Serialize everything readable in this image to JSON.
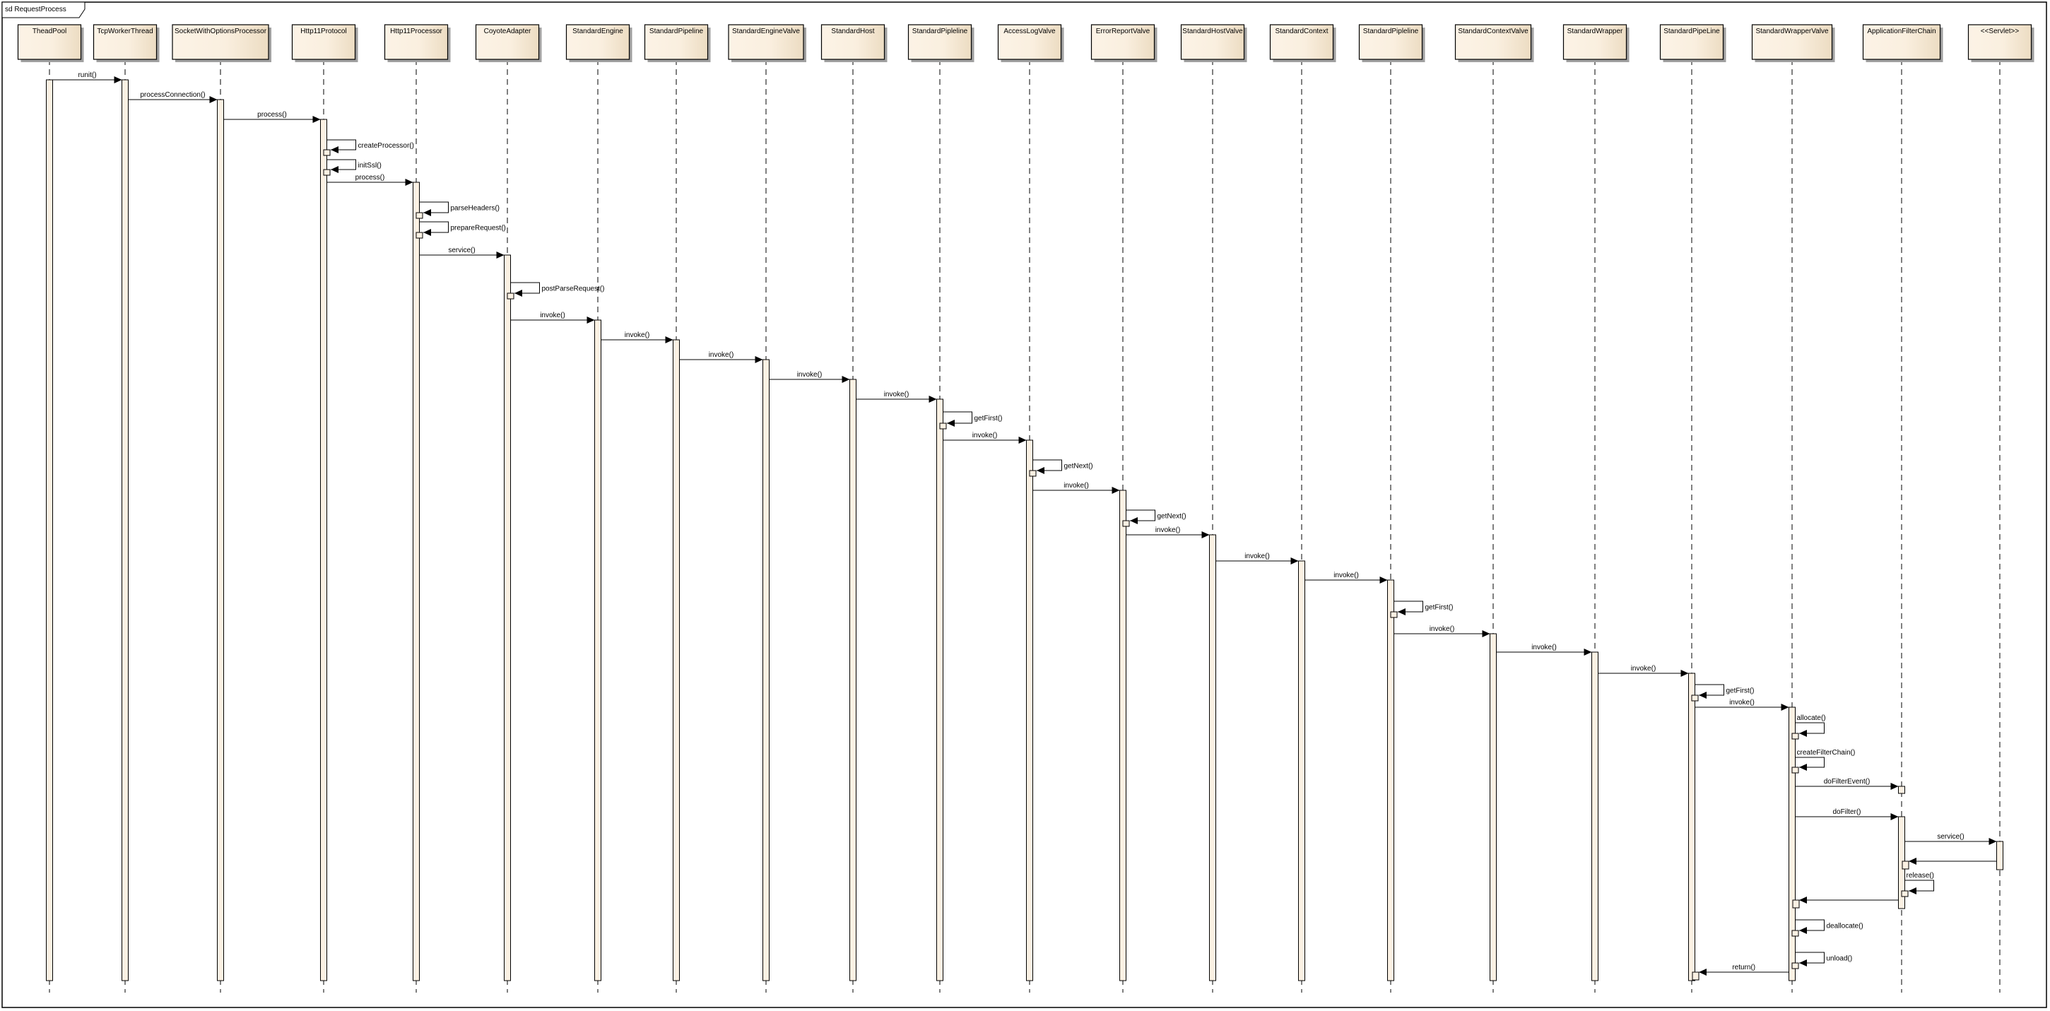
{
  "frame": {
    "title": "sd RequestProcess"
  },
  "colors": {
    "box_light": "#fcf3e6",
    "box_dark": "#ecdcc2",
    "activation": "#fbf1e3",
    "line": "#000000",
    "shadow": "#a0a0a0"
  },
  "participants": [
    "TheadPool",
    "TcpWorkerThread",
    "SocketWithOptionsProcessor",
    "Http11Protocol",
    "Http11Processor",
    "CoyoteAdapter",
    "StandardEngine",
    "StandardPipeline",
    "StandardEngineValve",
    "StandardHost",
    "StandardPipleline",
    "AccessLogValve",
    "ErrorReportValve",
    "StandardHostValve",
    "StandardContext",
    "StandardPipleline",
    "StandardContextValve",
    "StandardWrapper",
    "StandardPipeLine",
    "StandardWrapperValve",
    "ApplicationFilterChain",
    "<<Servlet>>"
  ],
  "messages": [
    {
      "label": "runit()",
      "from": 0,
      "to": 1,
      "kind": "call"
    },
    {
      "label": "processConnection()",
      "from": 1,
      "to": 2,
      "kind": "call"
    },
    {
      "label": "process()",
      "from": 2,
      "to": 3,
      "kind": "call"
    },
    {
      "label": "createProcessor()",
      "from": 3,
      "to": 3,
      "kind": "self"
    },
    {
      "label": "initSsl()",
      "from": 3,
      "to": 3,
      "kind": "self"
    },
    {
      "label": "process()",
      "from": 3,
      "to": 4,
      "kind": "call"
    },
    {
      "label": "parseHeaders()",
      "from": 4,
      "to": 4,
      "kind": "self"
    },
    {
      "label": "prepareRequest()",
      "from": 4,
      "to": 4,
      "kind": "self"
    },
    {
      "label": "service()",
      "from": 4,
      "to": 5,
      "kind": "call"
    },
    {
      "label": "postParseRequest()",
      "from": 5,
      "to": 5,
      "kind": "self"
    },
    {
      "label": "invoke()",
      "from": 5,
      "to": 6,
      "kind": "call"
    },
    {
      "label": "invoke()",
      "from": 6,
      "to": 7,
      "kind": "call"
    },
    {
      "label": "invoke()",
      "from": 7,
      "to": 8,
      "kind": "call"
    },
    {
      "label": "invoke()",
      "from": 8,
      "to": 9,
      "kind": "call"
    },
    {
      "label": "invoke()",
      "from": 9,
      "to": 10,
      "kind": "call"
    },
    {
      "label": "getFirst()",
      "from": 10,
      "to": 10,
      "kind": "self"
    },
    {
      "label": "invoke()",
      "from": 10,
      "to": 11,
      "kind": "call"
    },
    {
      "label": "getNext()",
      "from": 11,
      "to": 11,
      "kind": "self"
    },
    {
      "label": "invoke()",
      "from": 11,
      "to": 12,
      "kind": "call"
    },
    {
      "label": "getNext()",
      "from": 12,
      "to": 12,
      "kind": "self"
    },
    {
      "label": "invoke()",
      "from": 12,
      "to": 13,
      "kind": "call"
    },
    {
      "label": "invoke()",
      "from": 13,
      "to": 14,
      "kind": "call"
    },
    {
      "label": "invoke()",
      "from": 14,
      "to": 15,
      "kind": "call"
    },
    {
      "label": "getFirst()",
      "from": 15,
      "to": 15,
      "kind": "self"
    },
    {
      "label": "invoke()",
      "from": 15,
      "to": 16,
      "kind": "call"
    },
    {
      "label": "invoke()",
      "from": 16,
      "to": 17,
      "kind": "call"
    },
    {
      "label": "invoke()",
      "from": 17,
      "to": 18,
      "kind": "call"
    },
    {
      "label": "getFirst()",
      "from": 18,
      "to": 18,
      "kind": "self"
    },
    {
      "label": "invoke()",
      "from": 18,
      "to": 19,
      "kind": "call"
    },
    {
      "label": "allocate()",
      "from": 19,
      "to": 19,
      "kind": "self"
    },
    {
      "label": "createFilterChain()",
      "from": 19,
      "to": 19,
      "kind": "self"
    },
    {
      "label": "doFilterEvent()",
      "from": 19,
      "to": 20,
      "kind": "call"
    },
    {
      "label": "doFilter()",
      "from": 19,
      "to": 20,
      "kind": "call"
    },
    {
      "label": "service()",
      "from": 20,
      "to": 21,
      "kind": "call"
    },
    {
      "label": "",
      "from": 21,
      "to": 20,
      "kind": "return"
    },
    {
      "label": "release()",
      "from": 20,
      "to": 20,
      "kind": "self"
    },
    {
      "label": "",
      "from": 20,
      "to": 19,
      "kind": "return"
    },
    {
      "label": "deallocate()",
      "from": 19,
      "to": 19,
      "kind": "self"
    },
    {
      "label": "unload()",
      "from": 19,
      "to": 19,
      "kind": "self"
    },
    {
      "label": "return()",
      "from": 19,
      "to": 18,
      "kind": "return"
    }
  ]
}
